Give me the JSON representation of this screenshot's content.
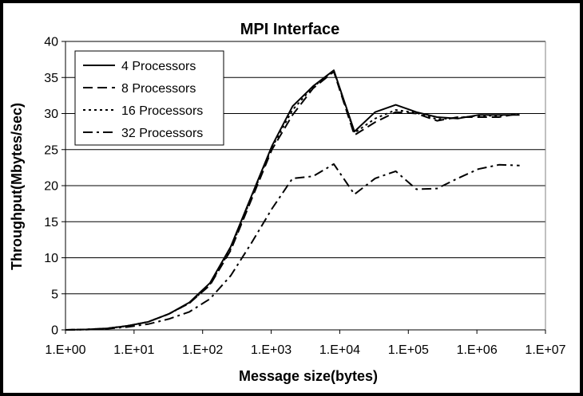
{
  "chart_data": {
    "type": "line",
    "title": "MPI Interface",
    "xlabel": "Message size(bytes)",
    "ylabel": "Throughput(Mbytes/sec)",
    "x_scale": "log",
    "xlim": [
      1,
      10000000
    ],
    "ylim": [
      0,
      40
    ],
    "x_tick_labels": [
      "1.E+00",
      "1.E+01",
      "1.E+02",
      "1.E+03",
      "1.E+04",
      "1.E+05",
      "1.E+06",
      "1.E+07"
    ],
    "y_ticks": [
      0,
      5,
      10,
      15,
      20,
      25,
      30,
      35,
      40
    ],
    "grid": "horizontal",
    "legend_position": "top-left",
    "x": [
      1,
      2,
      4,
      8,
      16,
      32,
      64,
      128,
      256,
      512,
      1024,
      2048,
      4096,
      8192,
      16384,
      32768,
      65536,
      131072,
      262144,
      524288,
      1048576,
      2097152,
      4194304
    ],
    "series": [
      {
        "name": "4 Processors",
        "dash": "solid",
        "values": [
          0,
          0.05,
          0.2,
          0.55,
          1.1,
          2.2,
          3.8,
          6.5,
          11.5,
          18.5,
          25.5,
          31.0,
          33.8,
          36.0,
          27.5,
          30.2,
          31.2,
          30.2,
          29.5,
          29.3,
          29.8,
          29.8,
          29.8
        ]
      },
      {
        "name": "8 Processors",
        "dash": "dash",
        "values": [
          0,
          0.05,
          0.2,
          0.55,
          1.1,
          2.2,
          3.7,
          6.2,
          11.0,
          18.0,
          25.0,
          29.8,
          33.5,
          35.8,
          27.0,
          28.8,
          30.2,
          30.0,
          29.0,
          29.5,
          29.5,
          29.5,
          30.0
        ]
      },
      {
        "name": "16 Processors",
        "dash": "dot",
        "values": [
          0,
          0.05,
          0.2,
          0.55,
          1.1,
          2.2,
          3.7,
          6.3,
          11.2,
          18.3,
          25.3,
          30.5,
          33.7,
          35.9,
          27.3,
          29.3,
          30.5,
          30.1,
          29.2,
          29.4,
          29.7,
          29.7,
          29.9
        ]
      },
      {
        "name": "32 Processors",
        "dash": "dashdot",
        "values": [
          0,
          0.03,
          0.15,
          0.4,
          0.8,
          1.5,
          2.5,
          4.3,
          7.5,
          12.0,
          16.8,
          21.0,
          21.3,
          23.0,
          18.8,
          21.0,
          22.0,
          19.5,
          19.6,
          21.0,
          22.3,
          22.9,
          22.8
        ]
      }
    ]
  }
}
